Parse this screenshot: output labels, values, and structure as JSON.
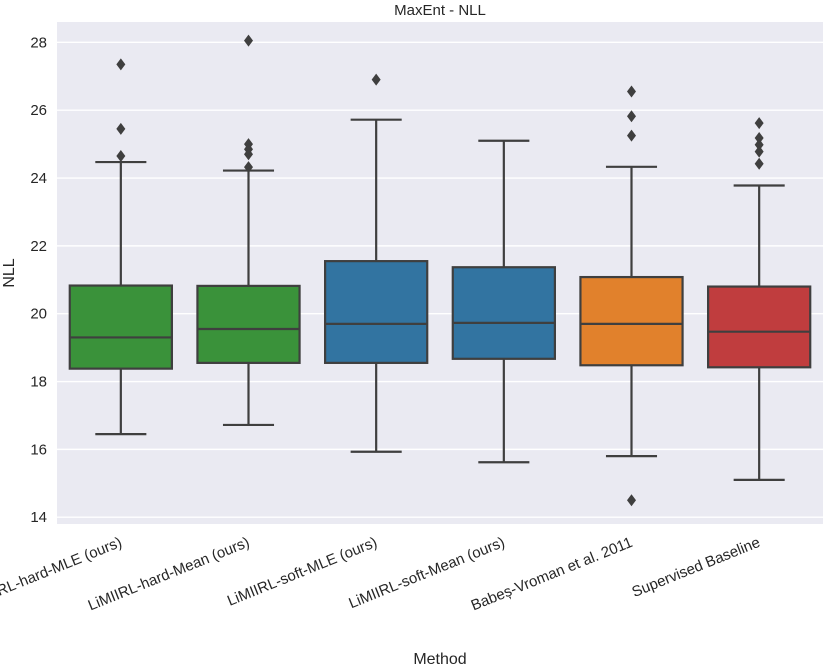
{
  "chart_data": {
    "type": "box",
    "title": "MaxEnt - NLL",
    "xlabel": "Method",
    "ylabel": "NLL",
    "ylim": [
      13.8,
      28.6
    ],
    "yticks": [
      14,
      16,
      18,
      20,
      22,
      24,
      26,
      28
    ],
    "grid": true,
    "categories": [
      "LiMIIRL-hard-MLE (ours)",
      "LiMIIRL-hard-Mean (ours)",
      "LiMIIRL-soft-MLE (ours)",
      "LiMIIRL-soft-Mean (ours)",
      "Babeș-Vroman et al. 2011",
      "Supervised Baseline"
    ],
    "boxes": [
      {
        "name": "LiMIIRL-hard-MLE (ours)",
        "color": "#3a923a",
        "whisker_low": 16.45,
        "q1": 18.38,
        "median": 19.3,
        "q3": 20.83,
        "whisker_high": 24.47,
        "outliers": [
          27.35,
          25.45,
          24.65
        ]
      },
      {
        "name": "LiMIIRL-hard-Mean (ours)",
        "color": "#3a923a",
        "whisker_low": 16.72,
        "q1": 18.55,
        "median": 19.55,
        "q3": 20.82,
        "whisker_high": 24.22,
        "outliers": [
          28.05,
          25.0,
          24.85,
          24.7,
          24.32
        ]
      },
      {
        "name": "LiMIIRL-soft-MLE (ours)",
        "color": "#3274a1",
        "whisker_low": 15.93,
        "q1": 18.55,
        "median": 19.7,
        "q3": 21.55,
        "whisker_high": 25.72,
        "outliers": [
          26.9
        ]
      },
      {
        "name": "LiMIIRL-soft-Mean (ours)",
        "color": "#3274a1",
        "whisker_low": 15.62,
        "q1": 18.67,
        "median": 19.73,
        "q3": 21.37,
        "whisker_high": 25.1,
        "outliers": []
      },
      {
        "name": "Babeș-Vroman et al. 2011",
        "color": "#e1812c",
        "whisker_low": 15.8,
        "q1": 18.48,
        "median": 19.7,
        "q3": 21.08,
        "whisker_high": 24.33,
        "outliers": [
          26.55,
          25.82,
          25.25,
          14.5
        ]
      },
      {
        "name": "Supervised Baseline",
        "color": "#c03d3e",
        "whisker_low": 15.1,
        "q1": 18.42,
        "median": 19.47,
        "q3": 20.8,
        "whisker_high": 23.78,
        "outliers": [
          25.62,
          25.18,
          24.98,
          24.78,
          24.42
        ]
      }
    ]
  },
  "colors": {
    "plot_background": "#eaeaf2",
    "grid": "#ffffff",
    "box_line": "#3f3f3f"
  }
}
